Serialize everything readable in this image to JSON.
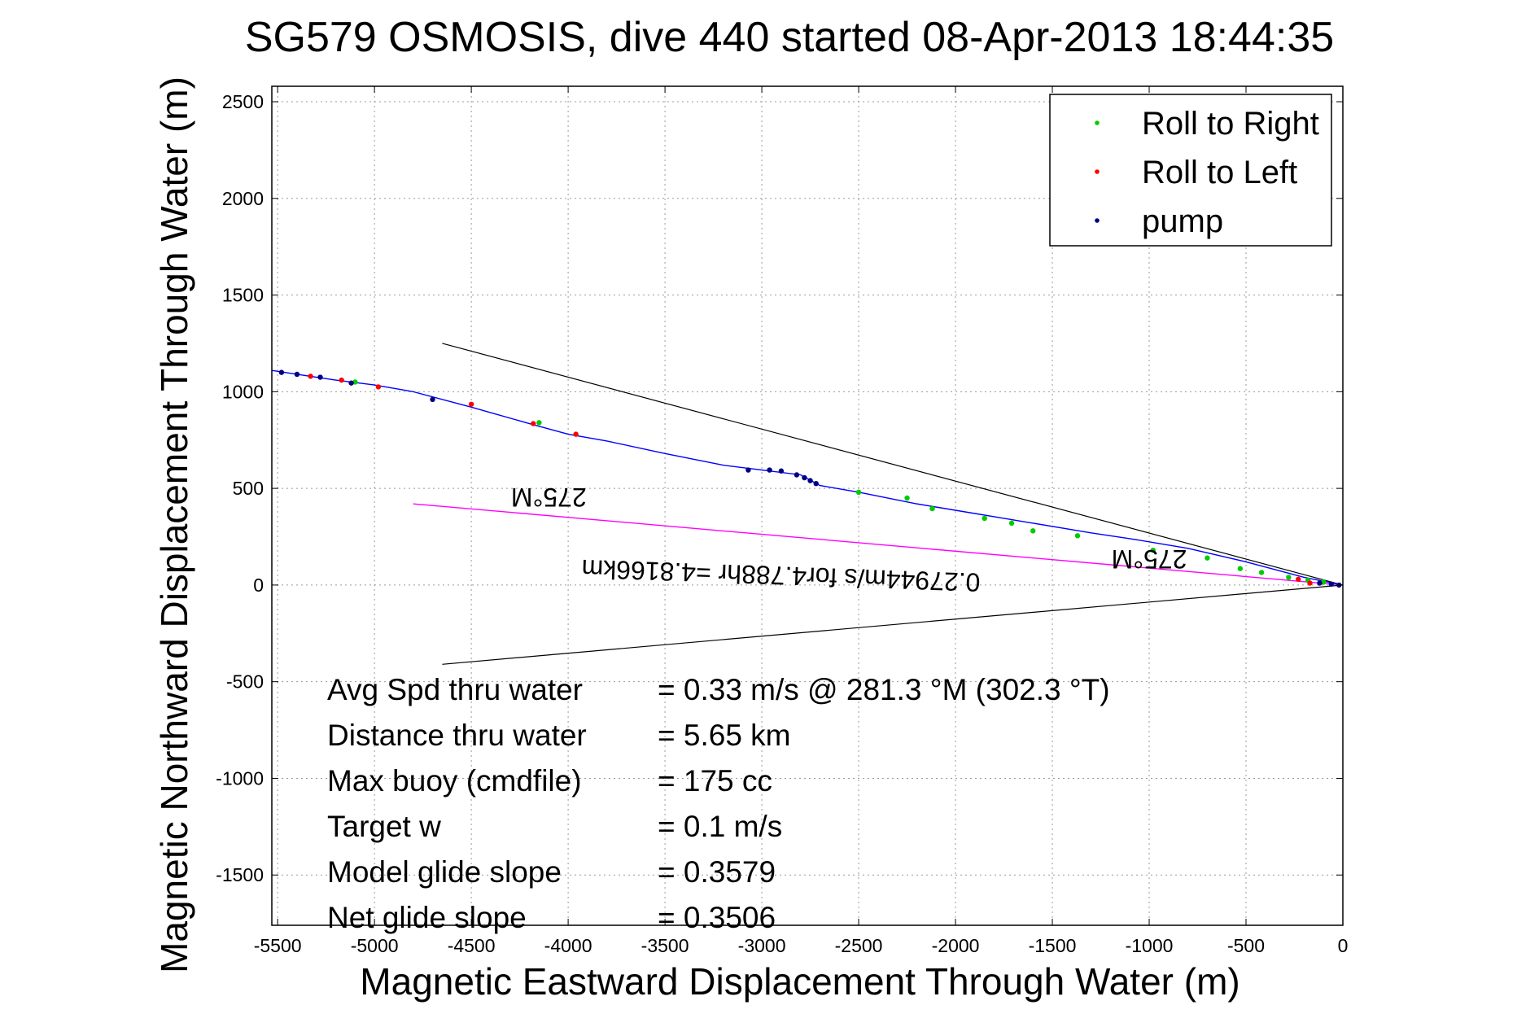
{
  "chart_data": {
    "type": "line",
    "title": "SG579 OSMOSIS, dive 440 started 08-Apr-2013 18:44:35",
    "xlabel": "Magnetic Eastward Displacement Through Water (m)",
    "ylabel": "Magnetic Northward Displacement Through Water (m)",
    "xlim": [
      -5530,
      0
    ],
    "ylim": [
      -1760,
      2580
    ],
    "xticks": [
      -5500,
      -5000,
      -4500,
      -4000,
      -3500,
      -3000,
      -2500,
      -2000,
      -1500,
      -1000,
      -500,
      0
    ],
    "yticks": [
      2500,
      2000,
      1500,
      1000,
      500,
      0,
      -500,
      -1000,
      -1500
    ],
    "grid": true,
    "legend": {
      "position": "top-right",
      "entries": [
        {
          "label": "Roll to Right",
          "color": "#00cc00"
        },
        {
          "label": "Roll to Left",
          "color": "#ff0000"
        },
        {
          "label": "pump",
          "color": "#000080"
        }
      ]
    },
    "track": {
      "color": "#0000ff",
      "x": [
        0,
        -100,
        -200,
        -350,
        -500,
        -800,
        -1100,
        -1300,
        -1600,
        -1900,
        -2200,
        -2500,
        -2700,
        -2800,
        -3000,
        -3200,
        -3500,
        -3800,
        -4000,
        -4200,
        -4500,
        -4800,
        -5000,
        -5200,
        -5400,
        -5530
      ],
      "y": [
        0,
        20,
        40,
        80,
        120,
        190,
        240,
        270,
        320,
        370,
        420,
        480,
        515,
        570,
        595,
        620,
        680,
        745,
        780,
        835,
        920,
        1000,
        1035,
        1060,
        1090,
        1110
      ]
    },
    "markers": {
      "roll_right": {
        "x": [
          -100,
          -180,
          -280,
          -420,
          -530,
          -700,
          -980,
          -1370,
          -1600,
          -1710,
          -1850,
          -2120,
          -2250,
          -2500,
          -4150,
          -5100
        ],
        "y": [
          15,
          25,
          40,
          65,
          85,
          140,
          180,
          255,
          280,
          320,
          345,
          395,
          450,
          480,
          840,
          1050
        ]
      },
      "roll_left": {
        "x": [
          -170,
          -230,
          -3960,
          -4180,
          -4500,
          -4980,
          -5170,
          -5330
        ],
        "y": [
          10,
          30,
          780,
          835,
          935,
          1025,
          1060,
          1080
        ]
      },
      "pump": {
        "x": [
          -20,
          -60,
          -120,
          -2720,
          -2750,
          -2780,
          -2820,
          -2900,
          -2960,
          -3070,
          -4700,
          -5120,
          -5280,
          -5400,
          -5480
        ],
        "y": [
          0,
          5,
          10,
          525,
          540,
          555,
          570,
          590,
          595,
          595,
          960,
          1045,
          1075,
          1090,
          1100
        ]
      }
    },
    "heading_wedge": {
      "color": "#000000",
      "upper_end": [
        -4650,
        1250
      ],
      "lower_end": [
        -4650,
        -410
      ]
    },
    "heading_line": {
      "color": "#ff00ff",
      "end": [
        -4800,
        420
      ]
    },
    "annotations": [
      {
        "text": "275°M",
        "x": -4100,
        "y": 500
      },
      {
        "text": "275°M",
        "x": -1000,
        "y": 180
      },
      {
        "text": "0.27944m/s for4.788hr =4.8166km",
        "x": -2900,
        "y": 95
      }
    ],
    "stats": [
      {
        "label": "Avg Spd thru water",
        "value": "=  0.33 m/s @ 281.3 °M (302.3 °T)"
      },
      {
        "label": "Distance thru water",
        "value": "=  5.65 km"
      },
      {
        "label": "Max buoy (cmdfile)",
        "value": "= 175 cc"
      },
      {
        "label": "Target w",
        "value": "= 0.1 m/s"
      },
      {
        "label": "Model glide slope",
        "value": "= 0.3579"
      },
      {
        "label": "Net glide slope",
        "value": "= 0.3506"
      }
    ]
  }
}
